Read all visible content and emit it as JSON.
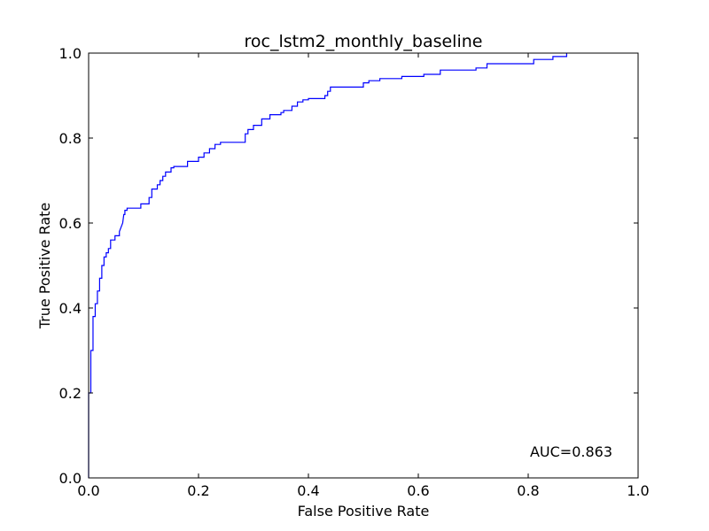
{
  "chart_data": {
    "type": "line",
    "title": "roc_lstm2_monthly_baseline",
    "xlabel": "False Positive Rate",
    "ylabel": "True Positive Rate",
    "xlim": [
      0.0,
      1.0
    ],
    "ylim": [
      0.0,
      1.0
    ],
    "x_ticks": [
      "0.0",
      "0.2",
      "0.4",
      "0.6",
      "0.8",
      "1.0"
    ],
    "y_ticks": [
      "0.0",
      "0.2",
      "0.4",
      "0.6",
      "0.8",
      "1.0"
    ],
    "grid": false,
    "annotation": "AUC=0.863",
    "series": [
      {
        "color": "#0000ff",
        "x": [
          0.0,
          0.0,
          0.004,
          0.004,
          0.008,
          0.008,
          0.012,
          0.012,
          0.016,
          0.016,
          0.02,
          0.02,
          0.024,
          0.024,
          0.028,
          0.028,
          0.032,
          0.032,
          0.036,
          0.036,
          0.04,
          0.04,
          0.048,
          0.048,
          0.056,
          0.056,
          0.062,
          0.064,
          0.066,
          0.066,
          0.07,
          0.07,
          0.095,
          0.095,
          0.11,
          0.11,
          0.115,
          0.115,
          0.125,
          0.125,
          0.13,
          0.13,
          0.135,
          0.135,
          0.14,
          0.14,
          0.15,
          0.15,
          0.155,
          0.155,
          0.18,
          0.18,
          0.2,
          0.2,
          0.21,
          0.21,
          0.22,
          0.22,
          0.23,
          0.23,
          0.24,
          0.24,
          0.285,
          0.285,
          0.29,
          0.29,
          0.3,
          0.3,
          0.315,
          0.315,
          0.33,
          0.33,
          0.35,
          0.35,
          0.355,
          0.355,
          0.37,
          0.37,
          0.38,
          0.38,
          0.39,
          0.39,
          0.4,
          0.4,
          0.43,
          0.43,
          0.435,
          0.435,
          0.44,
          0.44,
          0.5,
          0.5,
          0.51,
          0.51,
          0.53,
          0.53,
          0.57,
          0.57,
          0.61,
          0.61,
          0.64,
          0.64,
          0.705,
          0.705,
          0.725,
          0.725,
          0.81,
          0.81,
          0.845,
          0.845,
          0.87,
          0.87
        ],
        "y": [
          0.0,
          0.2,
          0.2,
          0.3,
          0.3,
          0.38,
          0.38,
          0.41,
          0.41,
          0.44,
          0.44,
          0.47,
          0.47,
          0.5,
          0.5,
          0.52,
          0.52,
          0.53,
          0.53,
          0.54,
          0.54,
          0.56,
          0.56,
          0.57,
          0.57,
          0.58,
          0.6,
          0.62,
          0.62,
          0.63,
          0.63,
          0.635,
          0.635,
          0.645,
          0.645,
          0.66,
          0.66,
          0.68,
          0.68,
          0.69,
          0.69,
          0.7,
          0.7,
          0.71,
          0.71,
          0.72,
          0.72,
          0.73,
          0.73,
          0.733,
          0.733,
          0.745,
          0.745,
          0.755,
          0.755,
          0.765,
          0.765,
          0.775,
          0.775,
          0.785,
          0.785,
          0.79,
          0.79,
          0.81,
          0.81,
          0.82,
          0.82,
          0.83,
          0.83,
          0.845,
          0.845,
          0.855,
          0.855,
          0.86,
          0.86,
          0.865,
          0.865,
          0.875,
          0.875,
          0.885,
          0.885,
          0.89,
          0.89,
          0.893,
          0.893,
          0.9,
          0.9,
          0.91,
          0.91,
          0.92,
          0.92,
          0.93,
          0.93,
          0.935,
          0.935,
          0.94,
          0.94,
          0.945,
          0.945,
          0.95,
          0.95,
          0.96,
          0.96,
          0.965,
          0.965,
          0.975,
          0.975,
          0.985,
          0.985,
          0.992,
          0.992,
          1.0
        ]
      }
    ]
  }
}
